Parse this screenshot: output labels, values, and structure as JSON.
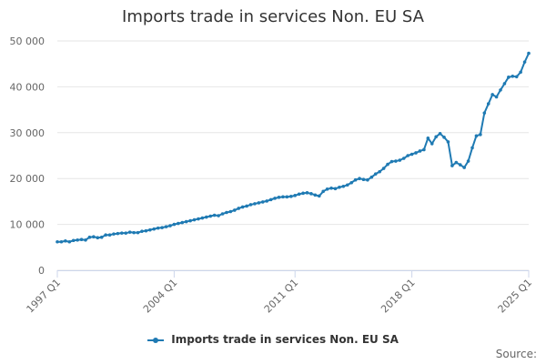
{
  "chart_data": {
    "type": "line",
    "title": "Imports trade in services Non. EU SA",
    "xlabel": "",
    "ylabel": "",
    "grid": true,
    "legend_placement": "bottom",
    "x_start": "1997 Q1",
    "x_end": "2025 Q1",
    "y_ticks": [
      {
        "value": 0,
        "label": "0"
      },
      {
        "value": 10000,
        "label": "10 000"
      },
      {
        "value": 20000,
        "label": "20 000"
      },
      {
        "value": 30000,
        "label": "30 000"
      },
      {
        "value": 40000,
        "label": "40 000"
      },
      {
        "value": 50000,
        "label": "50 000"
      }
    ],
    "x_tick_labels": [
      "1997 Q1",
      "2004 Q1",
      "2011 Q1",
      "2018 Q1",
      "2025 Q1"
    ],
    "ylim": [
      0,
      50000
    ],
    "series": [
      {
        "name": "Imports trade in services Non. EU SA",
        "color": "#1f7ab3",
        "values": [
          6200,
          6200,
          6400,
          6200,
          6500,
          6600,
          6700,
          6600,
          7200,
          7300,
          7100,
          7200,
          7700,
          7700,
          7900,
          8000,
          8100,
          8100,
          8300,
          8200,
          8200,
          8500,
          8600,
          8800,
          9000,
          9200,
          9300,
          9500,
          9700,
          10000,
          10200,
          10400,
          10600,
          10800,
          11000,
          11200,
          11400,
          11600,
          11800,
          12000,
          11900,
          12300,
          12600,
          12800,
          13100,
          13500,
          13800,
          14000,
          14300,
          14500,
          14700,
          14900,
          15100,
          15400,
          15700,
          15900,
          16000,
          16000,
          16100,
          16300,
          16600,
          16800,
          16900,
          16700,
          16400,
          16200,
          17200,
          17700,
          17900,
          17800,
          18100,
          18300,
          18600,
          19100,
          19700,
          20000,
          19800,
          19700,
          20300,
          21000,
          21500,
          22200,
          23100,
          23700,
          23800,
          24000,
          24400,
          25000,
          25300,
          25600,
          26000,
          26300,
          28800,
          27600,
          29100,
          29800,
          29000,
          28000,
          22800,
          23500,
          23000,
          22400,
          23800,
          26700,
          29300,
          29600,
          34300,
          36300,
          38300,
          37800,
          39300,
          40700,
          42100,
          42300,
          42200,
          43200,
          45400,
          47300
        ]
      }
    ]
  },
  "legend": {
    "label": "Imports trade in services Non. EU SA"
  },
  "credits": {
    "text": "Source:"
  }
}
